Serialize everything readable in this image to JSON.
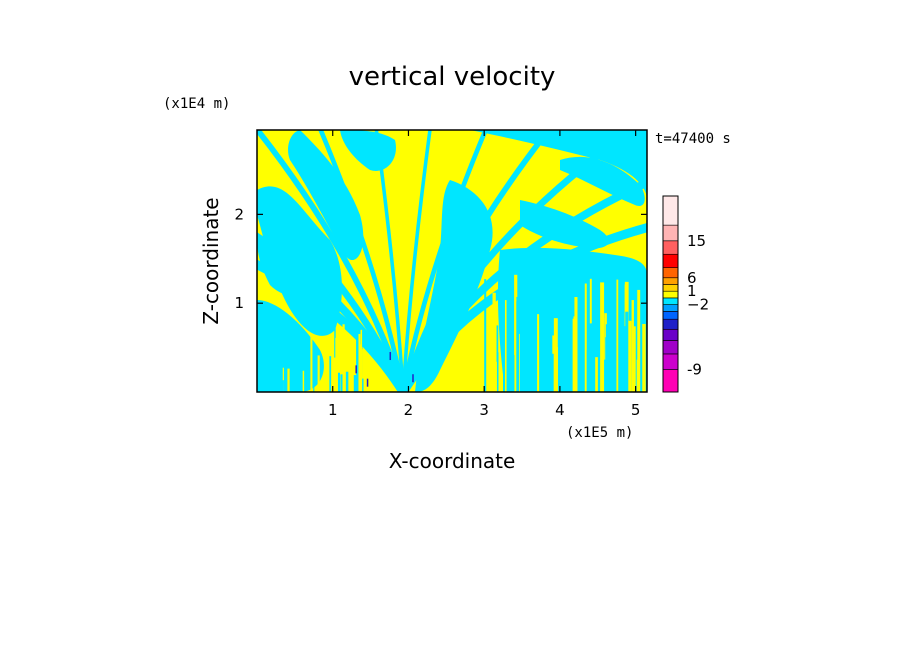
{
  "chart_data": {
    "type": "heatmap",
    "title": "vertical velocity",
    "xlabel": "X-coordinate",
    "ylabel": "Z-coordinate",
    "x_unit": "(x1E5 m)",
    "y_unit": "(x1E4 m)",
    "time_label": "t=47400 s",
    "xlim": [
      0,
      5.15
    ],
    "ylim": [
      0,
      2.95
    ],
    "x_ticks": [
      1,
      2,
      3,
      4,
      5
    ],
    "y_ticks": [
      1,
      2
    ],
    "colorbar": {
      "levels": [
        {
          "color": "#ff00b4"
        },
        {
          "color": "#cc00cc"
        },
        {
          "color": "#a000c8"
        },
        {
          "color": "#6a00c8"
        },
        {
          "color": "#2020c8"
        },
        {
          "color": "#0064ff"
        },
        {
          "color": "#00a0ff"
        },
        {
          "color": "#00e6ff"
        },
        {
          "color": "#ffff00"
        },
        {
          "color": "#ffd200"
        },
        {
          "color": "#ffa000"
        },
        {
          "color": "#ff6400"
        },
        {
          "color": "#ff0000"
        },
        {
          "color": "#ff6060"
        },
        {
          "color": "#ffb4b4"
        },
        {
          "color": "#ffe8e8"
        }
      ],
      "tick_labels": [
        {
          "value": -9,
          "text": "-9"
        },
        {
          "value": -2,
          "text": "−2"
        },
        {
          "value": 1,
          "text": "1"
        },
        {
          "value": 6,
          "text": "6"
        },
        {
          "value": 15,
          "text": "15"
        }
      ]
    },
    "grid": false,
    "legend": "colorbar-right"
  }
}
